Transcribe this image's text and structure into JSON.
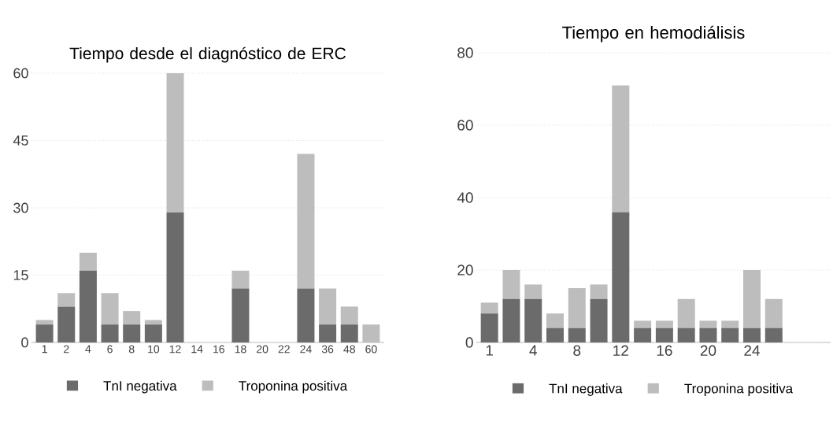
{
  "chart_data": [
    {
      "type": "bar",
      "stacked": true,
      "title": "Tiempo desde el diagnóstico de ERC",
      "categories": [
        "1",
        "2",
        "4",
        "6",
        "8",
        "10",
        "12",
        "14",
        "16",
        "18",
        "20",
        "22",
        "24",
        "36",
        "48",
        "60"
      ],
      "series": [
        {
          "name": "TnI negativa",
          "color": "#6b6b6b",
          "values": [
            4,
            8,
            16,
            4,
            4,
            4,
            29,
            0,
            0,
            12,
            0,
            0,
            12,
            4,
            4,
            0
          ]
        },
        {
          "name": "Troponina positiva",
          "color": "#bdbdbd",
          "values": [
            1,
            3,
            4,
            7,
            3,
            1,
            31,
            0,
            0,
            4,
            0,
            0,
            30,
            8,
            4,
            4
          ]
        }
      ],
      "ylim": [
        0,
        60
      ],
      "yticks": [
        0,
        15,
        30,
        45,
        60
      ],
      "grid": "y",
      "legend": "bottom"
    },
    {
      "type": "bar",
      "stacked": true,
      "title": "Tiempo en hemodiálisis",
      "categories": [
        "1",
        null,
        "4",
        null,
        "8",
        null,
        "12",
        null,
        "16",
        null,
        "20",
        null,
        "24",
        null,
        null,
        null
      ],
      "series": [
        {
          "name": "TnI negativa",
          "color": "#6b6b6b",
          "values": [
            8,
            12,
            12,
            4,
            4,
            12,
            36,
            4,
            4,
            4,
            4,
            4,
            4,
            4,
            null,
            null
          ]
        },
        {
          "name": "Troponina positiva",
          "color": "#bdbdbd",
          "values": [
            3,
            8,
            4,
            4,
            11,
            4,
            35,
            2,
            2,
            8,
            2,
            2,
            16,
            8,
            null,
            null
          ]
        }
      ],
      "ylim": [
        0,
        80
      ],
      "yticks": [
        0,
        20,
        40,
        60,
        80
      ],
      "grid": "y",
      "legend": "bottom"
    }
  ]
}
